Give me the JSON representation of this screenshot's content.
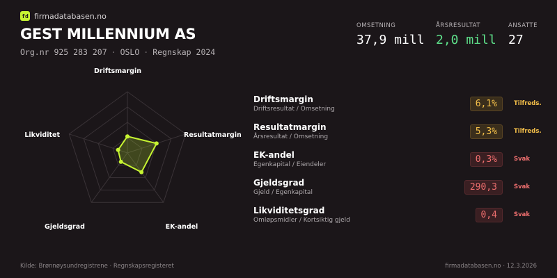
{
  "brand": {
    "logo_text": "fd",
    "name": "firmadatabasen.no"
  },
  "company": {
    "name": "GEST MILLENNIUM AS",
    "org_nr": "Org.nr 925 283 207",
    "city": "OSLO",
    "report": "Regnskap 2024",
    "separator": "·"
  },
  "kpis": [
    {
      "label": "OMSETNING",
      "value": "37,9 mill",
      "color": "#ffffff"
    },
    {
      "label": "ÅRSRESULTAT",
      "value": "2,0 mill",
      "color": "#5ee08a"
    },
    {
      "label": "ANSATTE",
      "value": "27",
      "color": "#ffffff"
    }
  ],
  "chart_data": {
    "type": "radar",
    "axes": [
      "Driftsmargin",
      "Resultatmargin",
      "EK-andel",
      "Gjeldsgrad",
      "Likviditet"
    ],
    "values": [
      0.27,
      0.5,
      0.39,
      0.18,
      0.16
    ],
    "range": [
      0,
      1
    ],
    "rings": 4,
    "series_color": "#c6f432"
  },
  "metrics": [
    {
      "name": "Driftsmargin",
      "formula": "Driftsresultat / Omsetning",
      "value": "6,1%",
      "status": "Tilfreds.",
      "tone": "warn"
    },
    {
      "name": "Resultatmargin",
      "formula": "Årsresultat / Omsetning",
      "value": "5,3%",
      "status": "Tilfreds.",
      "tone": "warn"
    },
    {
      "name": "EK-andel",
      "formula": "Egenkapital / Eiendeler",
      "value": "0,3%",
      "status": "Svak",
      "tone": "bad"
    },
    {
      "name": "Gjeldsgrad",
      "formula": "Gjeld / Egenkapital",
      "value": "290,3",
      "status": "Svak",
      "tone": "bad"
    },
    {
      "name": "Likviditetsgrad",
      "formula": "Omløpsmidler / Kortsiktig gjeld",
      "value": "0,4",
      "status": "Svak",
      "tone": "bad"
    }
  ],
  "tones": {
    "warn": {
      "text": "#f5c04a",
      "bg": "#3a2e1c",
      "border": "#5a4523"
    },
    "bad": {
      "text": "#ef6f6f",
      "bg": "#3a1f22",
      "border": "#55292d"
    }
  },
  "footer": {
    "source": "Kilde: Brønnøysundregistrene · Regnskapsregisteret",
    "site_date": "firmadatabasen.no · 12.3.2026"
  }
}
